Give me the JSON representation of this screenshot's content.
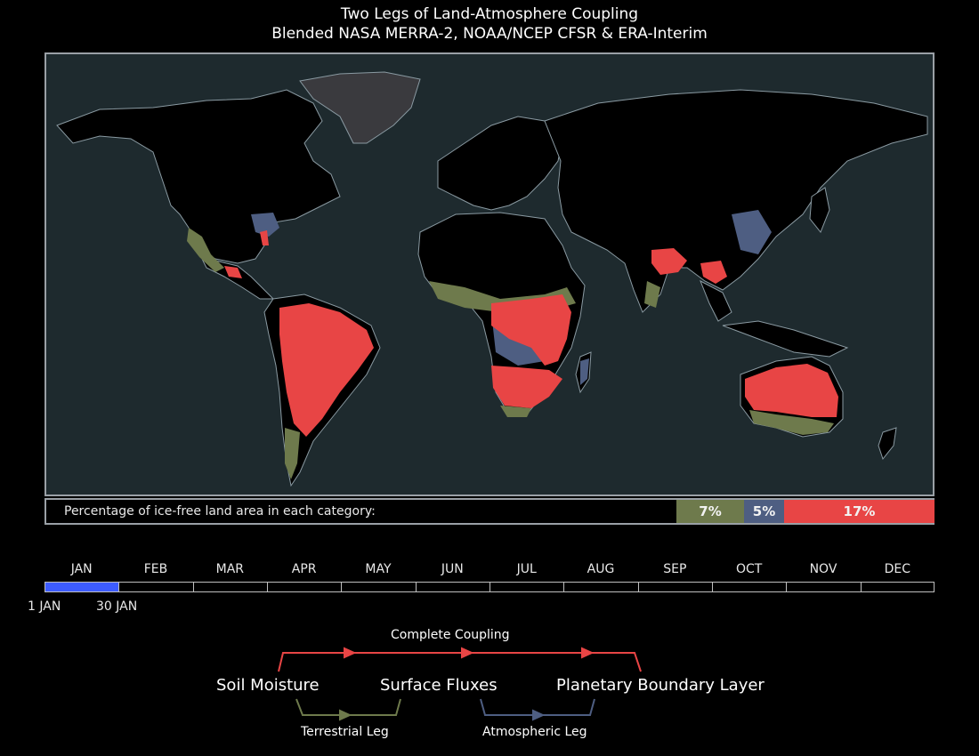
{
  "title": {
    "line1": "Two Legs of Land-Atmosphere Coupling",
    "line2": "Blended NASA MERRA-2, NOAA/NCEP CFSR & ERA-Interim"
  },
  "colors": {
    "ocean": "#1e2a2e",
    "land": "#000000",
    "ice": "#3a3a3e",
    "coast": "#8a9aa2",
    "terrestrial": "#6e7a4c",
    "atmospheric": "#4e5e82",
    "complete": "#e84545",
    "timebar_fill": "#3d5cff"
  },
  "stats": {
    "label": "Percentage of ice-free land area in each category:",
    "terrestrial": "7%",
    "atmospheric": "5%",
    "complete": "17%"
  },
  "timeline": {
    "months": [
      "JAN",
      "FEB",
      "MAR",
      "APR",
      "MAY",
      "JUN",
      "JUL",
      "AUG",
      "SEP",
      "OCT",
      "NOV",
      "DEC"
    ],
    "selected_month": "JAN",
    "start_label": "1 JAN",
    "end_label": "30 JAN",
    "progress_fraction": 0.0833
  },
  "legend": {
    "complete_label": "Complete Coupling",
    "soil": "Soil Moisture",
    "flux": "Surface Fluxes",
    "pbl": "Planetary Boundary Layer",
    "terrestrial_label": "Terrestrial Leg",
    "atmospheric_label": "Atmospheric Leg"
  }
}
